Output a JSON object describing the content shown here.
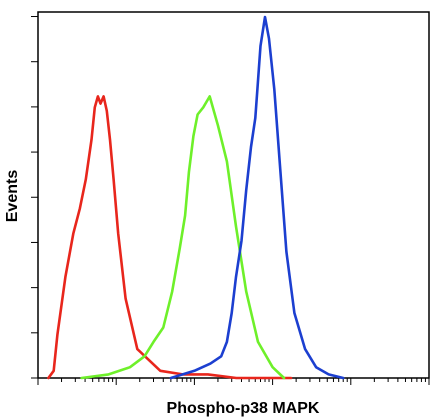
{
  "chart_data": {
    "type": "line",
    "title": "",
    "xlabel": "Phospho-p38 MAPK",
    "ylabel": "Events",
    "x_scale": "log",
    "xlim": [
      1,
      100000
    ],
    "ylim": [
      0,
      100
    ],
    "grid": false,
    "legend": "none",
    "series": [
      {
        "color": "#e8261c",
        "x": [
          1.36,
          1.59,
          1.77,
          2.24,
          2.83,
          3.43,
          4.09,
          4.83,
          5.32,
          5.84,
          6.29,
          6.91,
          7.59,
          8.34,
          9.26,
          10.6,
          13.2,
          18.6,
          36.6,
          70.8,
          149,
          343,
          770,
          1720
        ],
        "values": [
          0,
          2,
          12,
          28,
          40,
          47,
          55,
          66,
          75,
          78,
          76,
          78,
          74,
          66,
          55,
          40,
          22,
          8,
          2,
          1,
          1,
          0,
          0,
          0
        ]
      },
      {
        "color": "#6ef02a",
        "x": [
          3.61,
          8.0,
          15.0,
          23.0,
          30.0,
          40.0,
          52.0,
          65.0,
          76.0,
          85.0,
          97.0,
          110,
          130,
          157,
          200,
          260,
          340,
          460,
          650,
          1000,
          1400
        ],
        "values": [
          0,
          1,
          3,
          6,
          10,
          14,
          24,
          36,
          45,
          57,
          67,
          73,
          75,
          78,
          70,
          60,
          42,
          24,
          10,
          3,
          0
        ]
      },
      {
        "color": "#1c3fd0",
        "x": [
          50,
          100,
          160,
          220,
          260,
          300,
          340,
          400,
          460,
          530,
          600,
          640,
          700,
          800,
          900,
          1050,
          1250,
          1500,
          1900,
          2600,
          3600,
          5200,
          8000
        ],
        "values": [
          0,
          2,
          4,
          6,
          10,
          18,
          28,
          38,
          52,
          64,
          72,
          80,
          92,
          100,
          94,
          80,
          58,
          35,
          18,
          8,
          3,
          1,
          0
        ]
      }
    ]
  }
}
